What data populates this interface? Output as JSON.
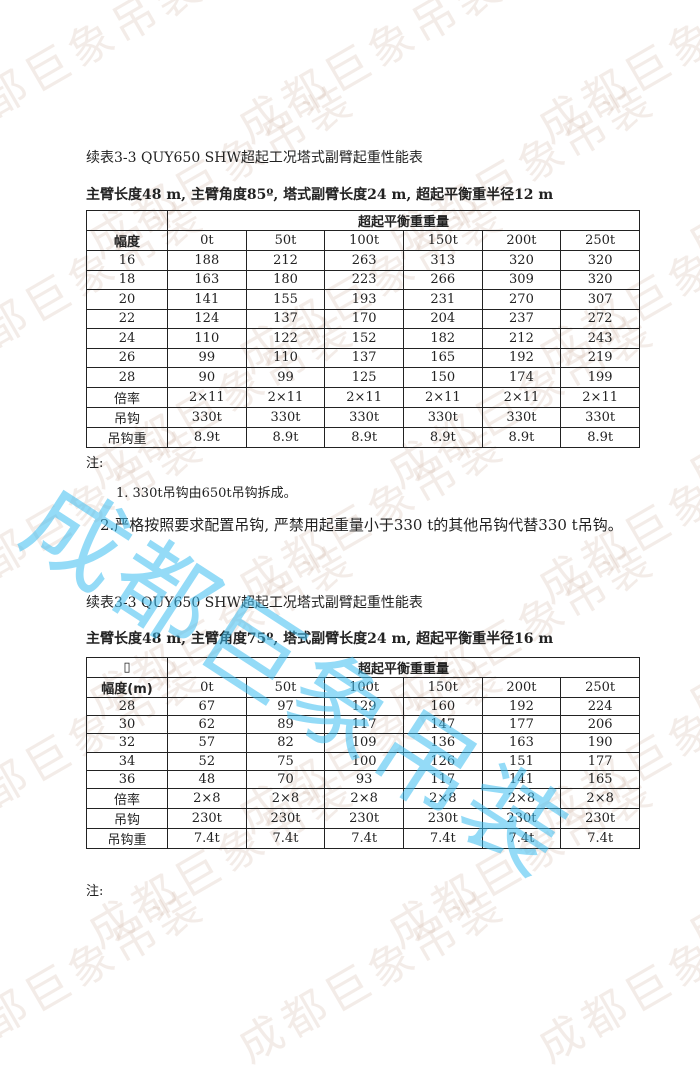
{
  "watermark": {
    "tile": "成都巨象吊装",
    "big": "成都巨象吊装"
  },
  "table1": {
    "title": "续表3-3 QUY650 SHW超起工况塔式副臂起重性能表",
    "subtitle": "主臂长度48 m, 主臂角度85º, 塔式副臂长度24 m, 超起平衡重半径12 m",
    "corner": "",
    "group_header": "超起平衡重重量",
    "row_header": "幅度",
    "columns": [
      "0t",
      "50t",
      "100t",
      "150t",
      "200t",
      "250t"
    ],
    "rows": [
      [
        "16",
        "188",
        "212",
        "263",
        "313",
        "320",
        "320"
      ],
      [
        "18",
        "163",
        "180",
        "223",
        "266",
        "309",
        "320"
      ],
      [
        "20",
        "141",
        "155",
        "193",
        "231",
        "270",
        "307"
      ],
      [
        "22",
        "124",
        "137",
        "170",
        "204",
        "237",
        "272"
      ],
      [
        "24",
        "110",
        "122",
        "152",
        "182",
        "212",
        "243"
      ],
      [
        "26",
        "99",
        "110",
        "137",
        "165",
        "192",
        "219"
      ],
      [
        "28",
        "90",
        "99",
        "125",
        "150",
        "174",
        "199"
      ],
      [
        "倍率",
        "2×11",
        "2×11",
        "2×11",
        "2×11",
        "2×11",
        "2×11"
      ],
      [
        "吊钩",
        "330t",
        "330t",
        "330t",
        "330t",
        "330t",
        "330t"
      ],
      [
        "吊钩重",
        "8.9t",
        "8.9t",
        "8.9t",
        "8.9t",
        "8.9t",
        "8.9t"
      ]
    ]
  },
  "notes1": {
    "label": "注:",
    "items": [
      "1. 330t吊钩由650t吊钩拆成。",
      "2.严格按照要求配置吊钩, 严禁用起重量小于330 t的其他吊钩代替330 t吊钩。"
    ]
  },
  "table2": {
    "title": "续表3-3 QUY650 SHW超起工况塔式副臂起重性能表",
    "subtitle": "主臂长度48 m, 主臂角度75º, 塔式副臂长度24 m, 超起平衡重半径16 m",
    "corner": "▯",
    "group_header": "超起平衡重重量",
    "row_header": "幅度(m)",
    "columns": [
      "0t",
      "50t",
      "100t",
      "150t",
      "200t",
      "250t"
    ],
    "rows": [
      [
        "28",
        "67",
        "97",
        "129",
        "160",
        "192",
        "224"
      ],
      [
        "30",
        "62",
        "89",
        "117",
        "147",
        "177",
        "206"
      ],
      [
        "32",
        "57",
        "82",
        "109",
        "136",
        "163",
        "190"
      ],
      [
        "34",
        "52",
        "75",
        "100",
        "126",
        "151",
        "177"
      ],
      [
        "36",
        "48",
        "70",
        "93",
        "117",
        "141",
        "165"
      ],
      [
        "倍率",
        "2×8",
        "2×8",
        "2×8",
        "2×8",
        "2×8",
        "2×8"
      ],
      [
        "吊钩",
        "230t",
        "230t",
        "230t",
        "230t",
        "230t",
        "230t"
      ],
      [
        "吊钩重",
        "7.4t",
        "7.4t",
        "7.4t",
        "7.4t",
        "7.4t",
        "7.4t"
      ]
    ]
  },
  "notes2": {
    "label": "注:"
  }
}
